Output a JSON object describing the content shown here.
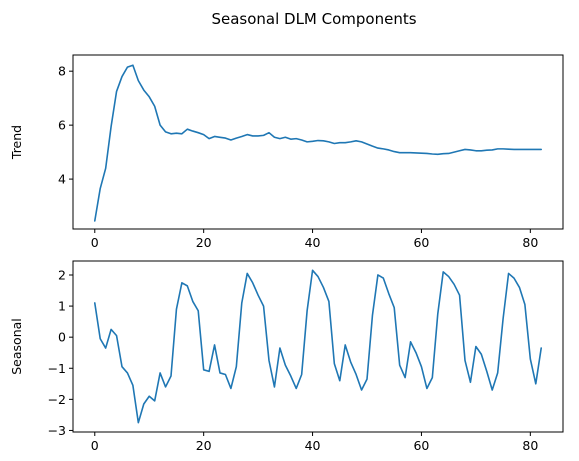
{
  "figure": {
    "title": "Seasonal DLM Components"
  },
  "chart_data": [
    {
      "type": "line",
      "title": "",
      "xlabel": "",
      "ylabel": "Trend",
      "xlim": [
        -4,
        86
      ],
      "ylim": [
        2.15,
        8.6
      ],
      "xticks": [
        0,
        20,
        40,
        60,
        80
      ],
      "xtick_labels": [
        "0",
        "20",
        "40",
        "60",
        "80"
      ],
      "yticks": [
        4,
        6,
        8
      ],
      "ytick_labels": [
        "4",
        "6",
        "8"
      ],
      "grid": false,
      "series": [
        {
          "color": "#1f77b4",
          "x": [
            0,
            1,
            2,
            3,
            4,
            5,
            6,
            7,
            8,
            9,
            10,
            11,
            12,
            13,
            14,
            15,
            16,
            17,
            18,
            19,
            20,
            21,
            22,
            23,
            24,
            25,
            26,
            27,
            28,
            29,
            30,
            31,
            32,
            33,
            34,
            35,
            36,
            37,
            38,
            39,
            40,
            41,
            42,
            43,
            44,
            45,
            46,
            47,
            48,
            49,
            50,
            51,
            52,
            53,
            54,
            55,
            56,
            57,
            58,
            59,
            60,
            61,
            62,
            63,
            64,
            65,
            66,
            67,
            68,
            69,
            70,
            71,
            72,
            73,
            74,
            75,
            76,
            77,
            78,
            79,
            80,
            81,
            82
          ],
          "values": [
            2.45,
            3.65,
            4.4,
            5.95,
            7.25,
            7.8,
            8.15,
            8.22,
            7.65,
            7.3,
            7.05,
            6.7,
            6.0,
            5.75,
            5.68,
            5.7,
            5.68,
            5.85,
            5.78,
            5.72,
            5.65,
            5.5,
            5.58,
            5.55,
            5.52,
            5.45,
            5.52,
            5.58,
            5.65,
            5.6,
            5.6,
            5.62,
            5.72,
            5.55,
            5.5,
            5.55,
            5.48,
            5.5,
            5.45,
            5.38,
            5.4,
            5.43,
            5.42,
            5.38,
            5.32,
            5.35,
            5.35,
            5.38,
            5.42,
            5.38,
            5.3,
            5.22,
            5.15,
            5.12,
            5.08,
            5.02,
            4.98,
            4.98,
            4.98,
            4.97,
            4.96,
            4.95,
            4.93,
            4.92,
            4.94,
            4.95,
            5.0,
            5.05,
            5.1,
            5.08,
            5.05,
            5.05,
            5.07,
            5.08,
            5.12,
            5.12,
            5.11,
            5.1,
            5.1,
            5.1,
            5.1,
            5.1,
            5.1
          ]
        }
      ]
    },
    {
      "type": "line",
      "title": "",
      "xlabel": "",
      "ylabel": "Seasonal",
      "xlim": [
        -4,
        86
      ],
      "ylim": [
        -3.05,
        2.45
      ],
      "xticks": [
        0,
        20,
        40,
        60,
        80
      ],
      "xtick_labels": [
        "0",
        "20",
        "40",
        "60",
        "80"
      ],
      "yticks": [
        -3,
        -2,
        -1,
        0,
        1,
        2
      ],
      "ytick_labels": [
        "−3",
        "−2",
        "−1",
        "0",
        "1",
        "2"
      ],
      "grid": false,
      "series": [
        {
          "color": "#1f77b4",
          "x": [
            0,
            1,
            2,
            3,
            4,
            5,
            6,
            7,
            8,
            9,
            10,
            11,
            12,
            13,
            14,
            15,
            16,
            17,
            18,
            19,
            20,
            21,
            22,
            23,
            24,
            25,
            26,
            27,
            28,
            29,
            30,
            31,
            32,
            33,
            34,
            35,
            36,
            37,
            38,
            39,
            40,
            41,
            42,
            43,
            44,
            45,
            46,
            47,
            48,
            49,
            50,
            51,
            52,
            53,
            54,
            55,
            56,
            57,
            58,
            59,
            60,
            61,
            62,
            63,
            64,
            65,
            66,
            67,
            68,
            69,
            70,
            71,
            72,
            73,
            74,
            75,
            76,
            77,
            78,
            79,
            80,
            81,
            82
          ],
          "values": [
            1.1,
            -0.05,
            -0.35,
            0.25,
            0.05,
            -0.95,
            -1.15,
            -1.55,
            -2.75,
            -2.15,
            -1.9,
            -2.05,
            -1.15,
            -1.6,
            -1.25,
            0.9,
            1.75,
            1.65,
            1.15,
            0.85,
            -1.05,
            -1.1,
            -0.25,
            -1.15,
            -1.2,
            -1.65,
            -0.95,
            1.1,
            2.05,
            1.75,
            1.35,
            1.0,
            -0.75,
            -1.6,
            -0.35,
            -0.9,
            -1.25,
            -1.65,
            -1.2,
            0.85,
            2.15,
            1.95,
            1.6,
            1.15,
            -0.85,
            -1.4,
            -0.25,
            -0.8,
            -1.2,
            -1.7,
            -1.35,
            0.7,
            2.0,
            1.9,
            1.4,
            0.95,
            -0.9,
            -1.3,
            -0.15,
            -0.5,
            -0.95,
            -1.65,
            -1.3,
            0.75,
            2.1,
            1.95,
            1.7,
            1.35,
            -0.75,
            -1.45,
            -0.3,
            -0.55,
            -1.1,
            -1.7,
            -1.15,
            0.6,
            2.05,
            1.9,
            1.6,
            1.05,
            -0.7,
            -1.5,
            -0.35
          ]
        }
      ]
    }
  ]
}
